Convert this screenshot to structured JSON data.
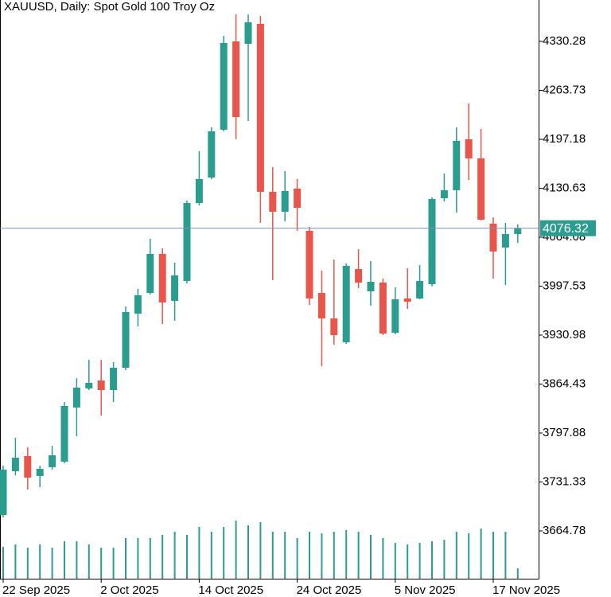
{
  "chart_data": {
    "type": "candlestick",
    "title": "XAUUSD, Daily:  Spot Gold 100 Troy Oz",
    "categories": [
      "22 Sep 2025",
      null,
      null,
      null,
      null,
      null,
      null,
      null,
      "2 Oct 2025",
      null,
      null,
      null,
      null,
      null,
      null,
      null,
      "14 Oct 2025",
      null,
      null,
      null,
      null,
      null,
      null,
      null,
      "24 Oct 2025",
      null,
      null,
      null,
      null,
      null,
      null,
      null,
      "5 Nov 2025",
      null,
      null,
      null,
      null,
      null,
      null,
      null,
      "17 Nov 2025",
      null,
      null
    ],
    "open": [
      3686.4,
      3745.9,
      3766.5,
      3739.5,
      3751.4,
      3758.9,
      3832.5,
      3858.5,
      3869.3,
      3856.3,
      3886.6,
      3960.2,
      3988.3,
      4041.4,
      3977.5,
      4004.6,
      4110.6,
      4145.2,
      4210.2,
      4330.3,
      4327.0,
      4354.1,
      4125.8,
      4098.7,
      4130.1,
      4072.7,
      3988.3,
      3953.7,
      3921.2,
      4020.8,
      3990.5,
      4002.4,
      3934.2,
      3980.8,
      3980.8,
      4000.2,
      4117.1,
      4128.0,
      4197.2,
      4171.2,
      4082.5,
      4050.0,
      4068.4
    ],
    "high": [
      3753.5,
      3791.4,
      3778.4,
      3753.5,
      3780.6,
      3840.1,
      3872.5,
      3897.5,
      3897.5,
      3894.2,
      3969.9,
      3993.7,
      4061.9,
      4048.9,
      4029.5,
      4113.9,
      4181.0,
      4213.4,
      4337.9,
      4375.7,
      4381.1,
      4364.9,
      4159.3,
      4153.9,
      4143.1,
      4078.2,
      4018.6,
      4033.8,
      4028.4,
      4047.8,
      4031.6,
      4007.8,
      3995.9,
      4021.9,
      4026.2,
      4118.2,
      4150.7,
      4213.4,
      4245.9,
      4211.2,
      4091.2,
      4083.5,
      4081.4
    ],
    "low": [
      3683.2,
      3740.5,
      3721.1,
      3724.3,
      3748.2,
      3756.8,
      3793.5,
      3856.3,
      3821.7,
      3840.1,
      3883.4,
      3942.9,
      3986.2,
      3946.1,
      3950.5,
      4001.3,
      4107.4,
      4143.1,
      4208.0,
      4197.2,
      4222.1,
      4083.5,
      4005.7,
      4085.7,
      4072.7,
      3972.1,
      3888.8,
      3918.0,
      3919.1,
      3994.8,
      3971.0,
      3931.0,
      3932.1,
      3966.7,
      3979.7,
      3997.0,
      4112.8,
      4097.6,
      4142.0,
      4086.8,
      4007.8,
      3999.2,
      4056.5
    ],
    "close": [
      3748.2,
      3764.4,
      3737.3,
      3749.2,
      3767.6,
      3834.7,
      3859.6,
      3866.1,
      3856.3,
      3886.6,
      3962.4,
      3985.1,
      4041.4,
      3975.3,
      4012.2,
      4110.6,
      4143.1,
      4208.0,
      4328.1,
      4227.5,
      4356.2,
      4125.8,
      4098.7,
      4126.9,
      4104.1,
      3980.8,
      3953.7,
      3931.0,
      4025.1,
      4002.4,
      4003.5,
      3933.1,
      3979.7,
      3976.4,
      4004.6,
      4116.0,
      4128.0,
      4195.0,
      4171.2,
      4087.9,
      4044.6,
      4068.4,
      4076.32
    ],
    "volume": [
      40,
      43,
      39,
      43,
      39,
      47,
      47,
      43,
      39,
      39,
      51,
      51,
      51,
      55,
      59,
      55,
      65,
      59,
      65,
      73,
      67,
      71,
      59,
      59,
      51,
      59,
      57,
      59,
      61,
      59,
      55,
      51,
      45,
      43,
      45,
      47,
      49,
      59,
      57,
      63,
      59,
      59,
      13
    ],
    "vlim": [
      0,
      180
    ],
    "ylim": [
      3599.85,
      4386.55
    ],
    "yticks": [
      4330.28,
      4263.73,
      4197.18,
      4130.63,
      4064.08,
      3997.53,
      3930.98,
      3864.43,
      3797.88,
      3731.33,
      3664.78
    ],
    "up_color": "#2a9d8f",
    "down_color": "#e8554a",
    "volume_color": "#2a9d8f",
    "price_line_color": "#7f93b5"
  }
}
